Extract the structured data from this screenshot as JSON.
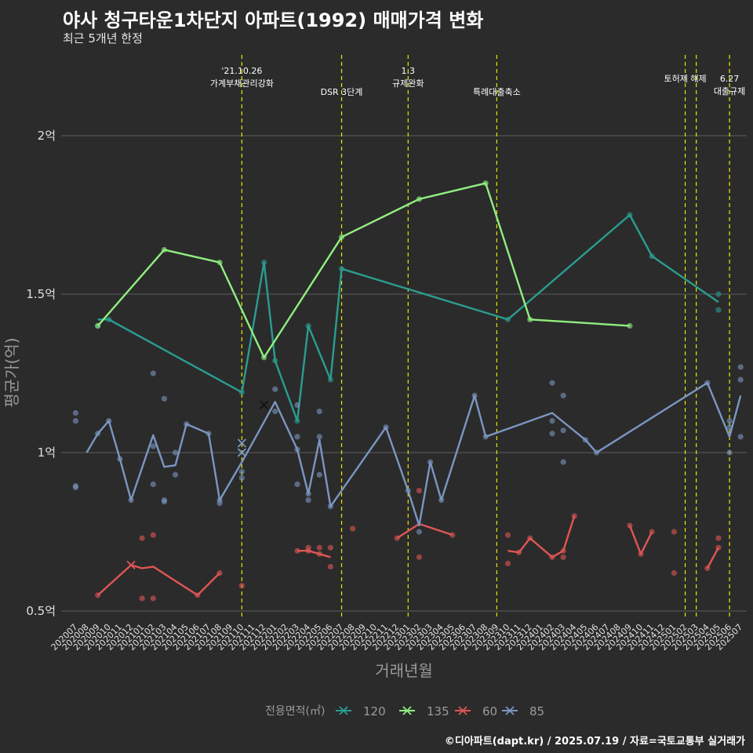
{
  "title": "야사 청구타운1차단지 아파트(1992) 매매가격 변화",
  "subtitle": "최근 5개년 한정",
  "caption": "©디아파트(dapt.kr) / 2025.07.19 / 자료=국토교통부 실거래가",
  "chart_data": {
    "type": "line",
    "xlabel": "거래년월",
    "ylabel": "평균가(억)",
    "yunit": "억",
    "ylim": [
      0.49,
      2.26
    ],
    "yticks": [
      0.5,
      1,
      1.5,
      2
    ],
    "ytick_labels": [
      "0.5억",
      "1억",
      "1.5억",
      "2억"
    ],
    "grid": true,
    "categories": [
      "202007",
      "202008",
      "202009",
      "202010",
      "202011",
      "202012",
      "202101",
      "202102",
      "202103",
      "202104",
      "202105",
      "202106",
      "202107",
      "202108",
      "202109",
      "202110",
      "202111",
      "202112",
      "202201",
      "202202",
      "202203",
      "202204",
      "202205",
      "202206",
      "202207",
      "202208",
      "202209",
      "202210",
      "202211",
      "202212",
      "202301",
      "202302",
      "202303",
      "202304",
      "202305",
      "202306",
      "202307",
      "202308",
      "202309",
      "202310",
      "202311",
      "202312",
      "202401",
      "202402",
      "202403",
      "202404",
      "202405",
      "202406",
      "202407",
      "202408",
      "202409",
      "202410",
      "202411",
      "202412",
      "202501",
      "202502",
      "202503",
      "202504",
      "202505",
      "202506",
      "202507"
    ],
    "legend": {
      "title": "전용면적(㎡)",
      "position": "bottom",
      "entries": [
        {
          "label": "120",
          "color": "#2a9d8f"
        },
        {
          "label": "135",
          "color": "#90ee80"
        },
        {
          "label": "60",
          "color": "#e05555"
        },
        {
          "label": "85",
          "color": "#7b96c2"
        }
      ]
    },
    "events": [
      {
        "x": "202110",
        "lines": [
          "'21.10.26",
          "가계부채관리강화"
        ],
        "level": 0
      },
      {
        "x": "202207",
        "lines": [
          "DSR 3단계"
        ],
        "level": 2
      },
      {
        "x": "202301",
        "lines": [
          "1.3",
          "규제완화"
        ],
        "level": 0
      },
      {
        "x": "202309",
        "lines": [
          "특례대출축소"
        ],
        "level": 2
      },
      {
        "x": "202502",
        "lines": [
          "토허제 해제"
        ],
        "level": 1
      },
      {
        "x": "202503",
        "lines": [],
        "level": 1
      },
      {
        "x": "202506",
        "lines": [
          "6.27",
          "대출규제"
        ],
        "level": 1
      }
    ],
    "series": [
      {
        "name": "120",
        "color": "#2a9d8f",
        "line": [
          [
            "202009",
            1.42
          ],
          [
            "202010",
            1.42
          ],
          [
            "202110",
            1.19
          ],
          [
            "202112",
            1.6
          ],
          [
            "202201",
            1.29
          ],
          [
            "202203",
            1.1
          ],
          [
            "202204",
            1.4
          ],
          [
            "202206",
            1.23
          ],
          [
            "202207",
            1.58
          ],
          [
            "202310",
            1.42
          ],
          [
            "202409",
            1.75
          ],
          [
            "202411",
            1.62
          ],
          [
            "202505",
            1.475
          ]
        ],
        "points": [
          [
            "202009",
            1.4
          ],
          [
            "202010",
            1.42
          ],
          [
            "202110",
            1.19
          ],
          [
            "202112",
            1.6
          ],
          [
            "202201",
            1.29
          ],
          [
            "202203",
            1.1
          ],
          [
            "202204",
            1.4
          ],
          [
            "202206",
            1.23
          ],
          [
            "202207",
            1.58
          ],
          [
            "202310",
            1.42
          ],
          [
            "202409",
            1.75
          ],
          [
            "202411",
            1.62
          ],
          [
            "202505",
            1.5
          ],
          [
            "202505",
            1.45
          ]
        ]
      },
      {
        "name": "135",
        "color": "#90ee80",
        "line": [
          [
            "202009",
            1.4
          ],
          [
            "202103",
            1.64
          ],
          [
            "202108",
            1.6
          ],
          [
            "202112",
            1.3
          ],
          [
            "202207",
            1.68
          ],
          [
            "202302",
            1.8
          ],
          [
            "202308",
            1.85
          ],
          [
            "202312",
            1.42
          ],
          [
            "202409",
            1.4
          ]
        ],
        "points": [
          [
            "202009",
            1.4
          ],
          [
            "202103",
            1.64
          ],
          [
            "202108",
            1.6
          ],
          [
            "202112",
            1.3
          ],
          [
            "202207",
            1.68
          ],
          [
            "202302",
            1.8
          ],
          [
            "202308",
            1.85
          ],
          [
            "202312",
            1.42
          ],
          [
            "202409",
            1.4
          ]
        ]
      },
      {
        "name": "60",
        "color": "#e05555",
        "line_segments": [
          [
            [
              "202009",
              0.55
            ],
            [
              "202012",
              0.645
            ],
            [
              "202101",
              0.635
            ],
            [
              "202102",
              0.64
            ],
            [
              "202106",
              0.55
            ],
            [
              "202108",
              0.62
            ]
          ],
          [
            [
              "202203",
              0.69
            ],
            [
              "202204",
              0.69
            ],
            [
              "202206",
              0.67
            ]
          ],
          [
            [
              "202212",
              0.73
            ],
            [
              "202302",
              0.775
            ],
            [
              "202305",
              0.74
            ]
          ],
          [
            [
              "202310",
              0.69
            ],
            [
              "202311",
              0.685
            ],
            [
              "202312",
              0.73
            ],
            [
              "202402",
              0.67
            ],
            [
              "202403",
              0.69
            ],
            [
              "202404",
              0.8
            ]
          ],
          [
            [
              "202409",
              0.77
            ],
            [
              "202410",
              0.68
            ],
            [
              "202411",
              0.75
            ]
          ],
          [
            [
              "202504",
              0.635
            ],
            [
              "202505",
              0.7
            ]
          ]
        ],
        "points": [
          [
            "202009",
            0.55
          ],
          [
            "202101",
            0.73
          ],
          [
            "202101",
            0.54
          ],
          [
            "202102",
            0.74
          ],
          [
            "202102",
            0.54
          ],
          [
            "202106",
            0.55
          ],
          [
            "202108",
            0.62
          ],
          [
            "202110",
            0.58
          ],
          [
            "202203",
            0.69
          ],
          [
            "202204",
            0.69
          ],
          [
            "202204",
            0.7
          ],
          [
            "202205",
            0.68
          ],
          [
            "202205",
            0.7
          ],
          [
            "202206",
            0.64
          ],
          [
            "202206",
            0.7
          ],
          [
            "202208",
            0.76
          ],
          [
            "202212",
            0.73
          ],
          [
            "202302",
            0.88
          ],
          [
            "202302",
            0.67
          ],
          [
            "202305",
            0.74
          ],
          [
            "202310",
            0.74
          ],
          [
            "202310",
            0.65
          ],
          [
            "202311",
            0.685
          ],
          [
            "202312",
            0.73
          ],
          [
            "202402",
            0.67
          ],
          [
            "202403",
            0.69
          ],
          [
            "202403",
            0.67
          ],
          [
            "202404",
            0.8
          ],
          [
            "202409",
            0.77
          ],
          [
            "202410",
            0.68
          ],
          [
            "202411",
            0.75
          ],
          [
            "202501",
            0.75
          ],
          [
            "202501",
            0.62
          ],
          [
            "202504",
            0.635
          ],
          [
            "202505",
            0.73
          ],
          [
            "202505",
            0.7
          ]
        ],
        "markers_x": [
          [
            "202012",
            0.645
          ]
        ]
      },
      {
        "name": "85",
        "color": "#7b96c2",
        "line": [
          [
            "202008",
            1.0
          ],
          [
            "202009",
            1.06
          ],
          [
            "202010",
            1.1
          ],
          [
            "202011",
            0.98
          ],
          [
            "202012",
            0.85
          ],
          [
            "202102",
            1.055
          ],
          [
            "202103",
            0.955
          ],
          [
            "202104",
            0.96
          ],
          [
            "202105",
            1.09
          ],
          [
            "202107",
            1.06
          ],
          [
            "202108",
            0.85
          ],
          [
            "202110",
            0.97
          ],
          [
            "202201",
            1.16
          ],
          [
            "202203",
            1.01
          ],
          [
            "202204",
            0.87
          ],
          [
            "202205",
            1.04
          ],
          [
            "202206",
            0.83
          ],
          [
            "202211",
            1.08
          ],
          [
            "202301",
            0.88
          ],
          [
            "202302",
            0.77
          ],
          [
            "202303",
            0.97
          ],
          [
            "202304",
            0.85
          ],
          [
            "202307",
            1.18
          ],
          [
            "202308",
            1.05
          ],
          [
            "202402",
            1.125
          ],
          [
            "202405",
            1.04
          ],
          [
            "202406",
            1.0
          ],
          [
            "202504",
            1.22
          ],
          [
            "202506",
            1.05
          ],
          [
            "202507",
            1.18
          ]
        ],
        "points": [
          [
            "202007",
            1.125
          ],
          [
            "202007",
            1.1
          ],
          [
            "202007",
            0.895
          ],
          [
            "202007",
            0.89
          ],
          [
            "202009",
            1.06
          ],
          [
            "202010",
            1.1
          ],
          [
            "202011",
            0.98
          ],
          [
            "202012",
            0.85
          ],
          [
            "202102",
            1.25
          ],
          [
            "202102",
            1.02
          ],
          [
            "202102",
            0.9
          ],
          [
            "202103",
            1.17
          ],
          [
            "202103",
            0.85
          ],
          [
            "202103",
            0.845
          ],
          [
            "202104",
            1.0
          ],
          [
            "202104",
            0.93
          ],
          [
            "202105",
            1.09
          ],
          [
            "202107",
            1.06
          ],
          [
            "202108",
            0.85
          ],
          [
            "202108",
            0.84
          ],
          [
            "202110",
            0.94
          ],
          [
            "202110",
            0.92
          ],
          [
            "202201",
            1.2
          ],
          [
            "202201",
            1.13
          ],
          [
            "202203",
            1.15
          ],
          [
            "202203",
            1.05
          ],
          [
            "202203",
            1.01
          ],
          [
            "202203",
            0.9
          ],
          [
            "202204",
            0.87
          ],
          [
            "202204",
            0.85
          ],
          [
            "202205",
            1.13
          ],
          [
            "202205",
            1.05
          ],
          [
            "202205",
            0.93
          ],
          [
            "202206",
            0.83
          ],
          [
            "202211",
            1.08
          ],
          [
            "202301",
            0.88
          ],
          [
            "202302",
            0.75
          ],
          [
            "202303",
            0.97
          ],
          [
            "202304",
            0.85
          ],
          [
            "202307",
            1.18
          ],
          [
            "202308",
            1.05
          ],
          [
            "202402",
            1.22
          ],
          [
            "202402",
            1.1
          ],
          [
            "202402",
            1.06
          ],
          [
            "202403",
            1.18
          ],
          [
            "202403",
            1.07
          ],
          [
            "202403",
            0.97
          ],
          [
            "202405",
            1.04
          ],
          [
            "202406",
            1.0
          ],
          [
            "202504",
            1.22
          ],
          [
            "202506",
            1.1
          ],
          [
            "202506",
            1.08
          ],
          [
            "202506",
            1.0
          ],
          [
            "202507",
            1.27
          ],
          [
            "202507",
            1.23
          ],
          [
            "202507",
            1.05
          ]
        ],
        "markers_x": [
          [
            "202110",
            1.03
          ],
          [
            "202110",
            1.0
          ],
          [
            "202112",
            1.15
          ]
        ]
      }
    ]
  }
}
